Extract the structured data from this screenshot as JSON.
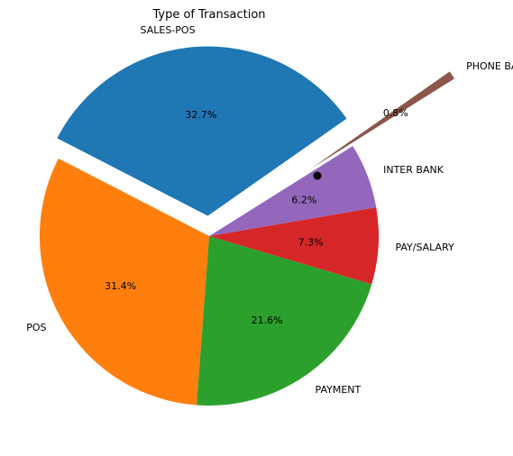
{
  "chart_data": {
    "type": "pie",
    "title": "Type of Transaction",
    "slices": [
      {
        "label": "SALES-POS",
        "percent": 32.7,
        "pct_label": "32.7%",
        "color": "#1f77b4",
        "exploded": true
      },
      {
        "label": "POS",
        "percent": 31.4,
        "pct_label": "31.4%",
        "color": "#ff7f0e",
        "exploded": false
      },
      {
        "label": "PAYMENT",
        "percent": 21.6,
        "pct_label": "21.6%",
        "color": "#2ca02c",
        "exploded": false
      },
      {
        "label": "PAY/SALARY",
        "percent": 7.3,
        "pct_label": "7.3%",
        "color": "#d62728",
        "exploded": false
      },
      {
        "label": "INTER BANK",
        "percent": 6.2,
        "pct_label": "6.2%",
        "color": "#9467bd",
        "exploded": false
      },
      {
        "label": "PHONE BANK",
        "percent": 0.8,
        "pct_label": "0.8%",
        "color": "#8c564b",
        "exploded": true
      }
    ],
    "legend": "none"
  }
}
